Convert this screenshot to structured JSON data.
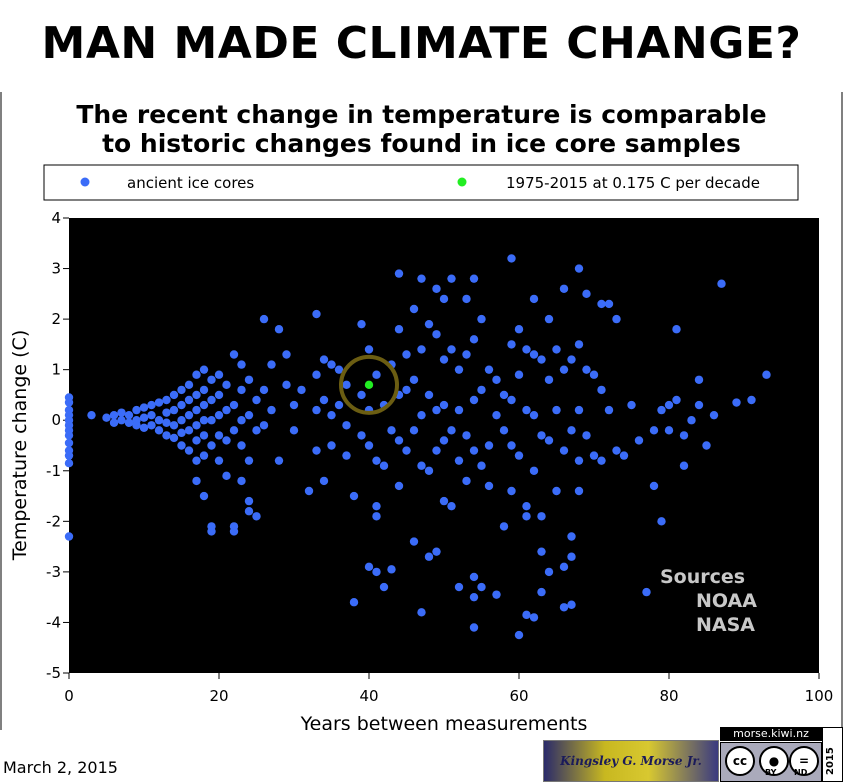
{
  "headline": "MAN MADE CLIMATE CHANGE?",
  "subtitle_lines": [
    "The recent change in temperature is comparable",
    "to historic changes found in ice core samples"
  ],
  "date": "March 2, 2015",
  "sources": [
    "Sources",
    "NOAA",
    "NASA"
  ],
  "branding": {
    "signature": "Kingsley G. Morse Jr.",
    "site": "morse.kiwi.nz",
    "license": [
      "BY",
      "ND"
    ],
    "year": "2015"
  },
  "colors": {
    "plot_bg": "#000000",
    "ice": "#3b6cf8",
    "recent": "#22ee22",
    "ring": "#6b5d12",
    "sources_text": "#c8c8c8"
  },
  "chart_data": {
    "type": "scatter",
    "title": "The recent change in temperature is comparable to historic changes found in ice core samples",
    "xlabel": "Years between measurements",
    "ylabel": "Temperature change (C)",
    "xlim": [
      0,
      100
    ],
    "ylim": [
      -5,
      4
    ],
    "x_ticks": [
      0,
      20,
      40,
      60,
      80,
      100
    ],
    "y_ticks": [
      -5,
      -4,
      -3,
      -2,
      -1,
      0,
      1,
      2,
      3,
      4
    ],
    "legend": "top",
    "series": [
      {
        "name": "ancient ice cores",
        "color": "#3b6cf8",
        "points": [
          [
            0,
            0.45
          ],
          [
            0,
            0.35
          ],
          [
            0,
            0.2
          ],
          [
            0,
            0.1
          ],
          [
            0,
            0
          ],
          [
            0,
            -0.1
          ],
          [
            0,
            -0.2
          ],
          [
            0,
            -0.3
          ],
          [
            0,
            -0.45
          ],
          [
            0,
            -0.6
          ],
          [
            0,
            -0.7
          ],
          [
            0,
            -0.85
          ],
          [
            0,
            -2.3
          ],
          [
            3,
            0.1
          ],
          [
            5,
            0.05
          ],
          [
            6,
            0.1
          ],
          [
            6,
            -0.05
          ],
          [
            7,
            0.15
          ],
          [
            7,
            0
          ],
          [
            8,
            0.1
          ],
          [
            8,
            -0.05
          ],
          [
            9,
            0.2
          ],
          [
            9,
            0
          ],
          [
            9,
            -0.1
          ],
          [
            10,
            0.25
          ],
          [
            10,
            0.05
          ],
          [
            10,
            -0.15
          ],
          [
            11,
            0.3
          ],
          [
            11,
            0.1
          ],
          [
            11,
            -0.1
          ],
          [
            12,
            0.35
          ],
          [
            12,
            0
          ],
          [
            12,
            -0.2
          ],
          [
            13,
            0.4
          ],
          [
            13,
            0.15
          ],
          [
            13,
            -0.05
          ],
          [
            13,
            -0.3
          ],
          [
            14,
            0.5
          ],
          [
            14,
            0.2
          ],
          [
            14,
            -0.1
          ],
          [
            14,
            -0.35
          ],
          [
            15,
            0.6
          ],
          [
            15,
            0.3
          ],
          [
            15,
            0
          ],
          [
            15,
            -0.25
          ],
          [
            15,
            -0.5
          ],
          [
            16,
            0.7
          ],
          [
            16,
            0.4
          ],
          [
            16,
            0.1
          ],
          [
            16,
            -0.2
          ],
          [
            16,
            -0.6
          ],
          [
            17,
            0.9
          ],
          [
            17,
            0.5
          ],
          [
            17,
            0.2
          ],
          [
            17,
            -0.1
          ],
          [
            17,
            -0.4
          ],
          [
            17,
            -0.8
          ],
          [
            17,
            -1.2
          ],
          [
            18,
            1.0
          ],
          [
            18,
            0.6
          ],
          [
            18,
            0.3
          ],
          [
            18,
            0
          ],
          [
            18,
            -0.3
          ],
          [
            18,
            -0.7
          ],
          [
            18,
            -1.5
          ],
          [
            19,
            0.8
          ],
          [
            19,
            0.4
          ],
          [
            19,
            0
          ],
          [
            19,
            -0.5
          ],
          [
            19,
            -2.1
          ],
          [
            19,
            -2.2
          ],
          [
            20,
            0.9
          ],
          [
            20,
            0.5
          ],
          [
            20,
            0.1
          ],
          [
            20,
            -0.3
          ],
          [
            20,
            -0.8
          ],
          [
            21,
            0.7
          ],
          [
            21,
            0.2
          ],
          [
            21,
            -0.4
          ],
          [
            21,
            -1.1
          ],
          [
            22,
            1.3
          ],
          [
            22,
            0.3
          ],
          [
            22,
            -0.2
          ],
          [
            22,
            -2.1
          ],
          [
            22,
            -2.2
          ],
          [
            23,
            1.1
          ],
          [
            23,
            0.6
          ],
          [
            23,
            0
          ],
          [
            23,
            -0.5
          ],
          [
            23,
            -1.2
          ],
          [
            24,
            0.8
          ],
          [
            24,
            0.1
          ],
          [
            24,
            -0.8
          ],
          [
            24,
            -1.6
          ],
          [
            24,
            -1.8
          ],
          [
            25,
            0.4
          ],
          [
            25,
            -0.2
          ],
          [
            25,
            -1.9
          ],
          [
            26,
            2.0
          ],
          [
            26,
            0.6
          ],
          [
            26,
            -0.1
          ],
          [
            27,
            1.1
          ],
          [
            27,
            0.2
          ],
          [
            28,
            1.8
          ],
          [
            28,
            -0.8
          ],
          [
            29,
            1.3
          ],
          [
            29,
            0.7
          ],
          [
            30,
            0.3
          ],
          [
            30,
            -0.2
          ],
          [
            31,
            0.6
          ],
          [
            32,
            -1.4
          ],
          [
            33,
            2.1
          ],
          [
            33,
            0.9
          ],
          [
            33,
            0.2
          ],
          [
            33,
            -0.6
          ],
          [
            34,
            1.2
          ],
          [
            34,
            0.4
          ],
          [
            34,
            -1.2
          ],
          [
            35,
            1.1
          ],
          [
            35,
            0.1
          ],
          [
            35,
            -0.5
          ],
          [
            36,
            1.0
          ],
          [
            36,
            0.3
          ],
          [
            37,
            0.7
          ],
          [
            37,
            -0.1
          ],
          [
            37,
            -0.7
          ],
          [
            38,
            -1.5
          ],
          [
            38,
            -3.6
          ],
          [
            39,
            1.9
          ],
          [
            39,
            0.5
          ],
          [
            39,
            -0.3
          ],
          [
            40,
            1.4
          ],
          [
            40,
            0.2
          ],
          [
            40,
            -0.5
          ],
          [
            40,
            -2.9
          ],
          [
            41,
            0.9
          ],
          [
            41,
            -0.8
          ],
          [
            41,
            -1.7
          ],
          [
            41,
            -1.9
          ],
          [
            41,
            -3.0
          ],
          [
            42,
            -3.3
          ],
          [
            42,
            0.3
          ],
          [
            42,
            -0.9
          ],
          [
            43,
            1.1
          ],
          [
            43,
            -0.2
          ],
          [
            43,
            -2.95
          ],
          [
            44,
            2.9
          ],
          [
            44,
            1.8
          ],
          [
            44,
            0.5
          ],
          [
            44,
            -0.4
          ],
          [
            44,
            -1.3
          ],
          [
            45,
            1.3
          ],
          [
            45,
            0.6
          ],
          [
            45,
            -0.6
          ],
          [
            46,
            2.2
          ],
          [
            46,
            0.8
          ],
          [
            46,
            -0.2
          ],
          [
            46,
            -2.4
          ],
          [
            47,
            2.8
          ],
          [
            47,
            1.4
          ],
          [
            47,
            0.1
          ],
          [
            47,
            -0.9
          ],
          [
            47,
            -3.8
          ],
          [
            48,
            1.9
          ],
          [
            48,
            0.5
          ],
          [
            48,
            -1.0
          ],
          [
            48,
            -2.7
          ],
          [
            49,
            2.6
          ],
          [
            49,
            1.7
          ],
          [
            49,
            0.2
          ],
          [
            49,
            -0.6
          ],
          [
            49,
            -2.6
          ],
          [
            50,
            2.4
          ],
          [
            50,
            1.2
          ],
          [
            50,
            0.3
          ],
          [
            50,
            -0.4
          ],
          [
            50,
            -1.6
          ],
          [
            51,
            2.8
          ],
          [
            51,
            1.4
          ],
          [
            51,
            -0.2
          ],
          [
            51,
            -1.7
          ],
          [
            52,
            1.0
          ],
          [
            52,
            0.2
          ],
          [
            52,
            -0.8
          ],
          [
            52,
            -3.3
          ],
          [
            53,
            2.4
          ],
          [
            53,
            1.3
          ],
          [
            53,
            -0.3
          ],
          [
            53,
            -1.2
          ],
          [
            54,
            2.8
          ],
          [
            54,
            1.6
          ],
          [
            54,
            0.4
          ],
          [
            54,
            -0.6
          ],
          [
            54,
            -3.1
          ],
          [
            54,
            -3.5
          ],
          [
            54,
            -4.1
          ],
          [
            55,
            2.0
          ],
          [
            55,
            0.6
          ],
          [
            55,
            -0.9
          ],
          [
            55,
            -3.3
          ],
          [
            56,
            1.0
          ],
          [
            56,
            -0.5
          ],
          [
            56,
            -1.3
          ],
          [
            57,
            0.8
          ],
          [
            57,
            0.1
          ],
          [
            57,
            -3.45
          ],
          [
            58,
            0.5
          ],
          [
            58,
            -0.2
          ],
          [
            58,
            -2.1
          ],
          [
            59,
            3.2
          ],
          [
            59,
            1.5
          ],
          [
            59,
            0.4
          ],
          [
            59,
            -0.5
          ],
          [
            59,
            -1.4
          ],
          [
            60,
            1.8
          ],
          [
            60,
            0.9
          ],
          [
            60,
            -0.7
          ],
          [
            60,
            -4.25
          ],
          [
            61,
            1.4
          ],
          [
            61,
            0.2
          ],
          [
            61,
            -1.7
          ],
          [
            61,
            -1.9
          ],
          [
            61,
            -3.85
          ],
          [
            62,
            2.4
          ],
          [
            62,
            1.3
          ],
          [
            62,
            0.1
          ],
          [
            62,
            -1.0
          ],
          [
            62,
            -3.9
          ],
          [
            63,
            1.2
          ],
          [
            63,
            -0.3
          ],
          [
            63,
            -1.9
          ],
          [
            63,
            -2.6
          ],
          [
            63,
            -3.4
          ],
          [
            64,
            2.0
          ],
          [
            64,
            0.8
          ],
          [
            64,
            -0.4
          ],
          [
            64,
            -3.0
          ],
          [
            65,
            1.4
          ],
          [
            65,
            0.2
          ],
          [
            65,
            -1.4
          ],
          [
            66,
            2.6
          ],
          [
            66,
            1.0
          ],
          [
            66,
            -0.6
          ],
          [
            66,
            -2.9
          ],
          [
            66,
            -3.7
          ],
          [
            67,
            1.2
          ],
          [
            67,
            -0.2
          ],
          [
            67,
            -2.3
          ],
          [
            67,
            -2.7
          ],
          [
            67,
            -3.65
          ],
          [
            68,
            3.0
          ],
          [
            68,
            1.5
          ],
          [
            68,
            0.2
          ],
          [
            68,
            -0.8
          ],
          [
            68,
            -1.4
          ],
          [
            69,
            2.5
          ],
          [
            69,
            1.0
          ],
          [
            69,
            -0.3
          ],
          [
            70,
            0.9
          ],
          [
            70,
            -0.7
          ],
          [
            71,
            2.3
          ],
          [
            71,
            0.6
          ],
          [
            71,
            -0.8
          ],
          [
            72,
            2.3
          ],
          [
            72,
            0.2
          ],
          [
            73,
            2.0
          ],
          [
            73,
            -0.6
          ],
          [
            74,
            -0.7
          ],
          [
            75,
            0.3
          ],
          [
            76,
            -0.4
          ],
          [
            77,
            -3.4
          ],
          [
            78,
            -1.3
          ],
          [
            78,
            -0.2
          ],
          [
            79,
            -2.0
          ],
          [
            79,
            0.2
          ],
          [
            80,
            -0.2
          ],
          [
            80,
            0.3
          ],
          [
            81,
            1.8
          ],
          [
            81,
            0.4
          ],
          [
            82,
            -0.3
          ],
          [
            82,
            -0.9
          ],
          [
            83,
            0
          ],
          [
            84,
            0.3
          ],
          [
            84,
            0.8
          ],
          [
            85,
            -0.5
          ],
          [
            86,
            0.1
          ],
          [
            87,
            2.7
          ],
          [
            89,
            0.35
          ],
          [
            91,
            0.4
          ],
          [
            93,
            0.9
          ]
        ]
      },
      {
        "name": "1975-2015 at 0.175 C per decade",
        "color": "#22ee22",
        "points": [
          [
            40,
            0.7
          ]
        ]
      }
    ],
    "annotations": [
      {
        "type": "circle",
        "at": [
          40,
          0.7
        ],
        "label": "recent period highlighted"
      }
    ]
  }
}
